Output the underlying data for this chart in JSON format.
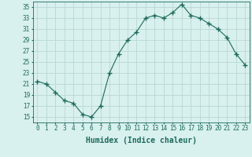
{
  "x": [
    0,
    1,
    2,
    3,
    4,
    5,
    6,
    7,
    8,
    9,
    10,
    11,
    12,
    13,
    14,
    15,
    16,
    17,
    18,
    19,
    20,
    21,
    22,
    23
  ],
  "y": [
    21.5,
    21.0,
    19.5,
    18.0,
    17.5,
    15.5,
    15.0,
    17.0,
    23.0,
    26.5,
    29.0,
    30.5,
    33.0,
    33.5,
    33.0,
    34.0,
    35.5,
    33.5,
    33.0,
    32.0,
    31.0,
    29.5,
    26.5,
    24.5
  ],
  "line_color": "#1a6b5a",
  "marker": "+",
  "marker_size": 4,
  "marker_lw": 1.0,
  "bg_color": "#d8f0ee",
  "grid_color": "#b8d8d4",
  "xlabel": "Humidex (Indice chaleur)",
  "xlim": [
    -0.5,
    23.5
  ],
  "ylim": [
    14,
    36
  ],
  "yticks": [
    15,
    17,
    19,
    21,
    23,
    25,
    27,
    29,
    31,
    33,
    35
  ],
  "xticks": [
    0,
    1,
    2,
    3,
    4,
    5,
    6,
    7,
    8,
    9,
    10,
    11,
    12,
    13,
    14,
    15,
    16,
    17,
    18,
    19,
    20,
    21,
    22,
    23
  ],
  "xtick_labels": [
    "0",
    "1",
    "2",
    "3",
    "4",
    "5",
    "6",
    "7",
    "8",
    "9",
    "10",
    "11",
    "12",
    "13",
    "14",
    "15",
    "16",
    "17",
    "18",
    "19",
    "20",
    "21",
    "22",
    "23"
  ],
  "tick_color": "#1a6b5a",
  "label_fontsize": 7,
  "tick_fontsize": 5.5
}
